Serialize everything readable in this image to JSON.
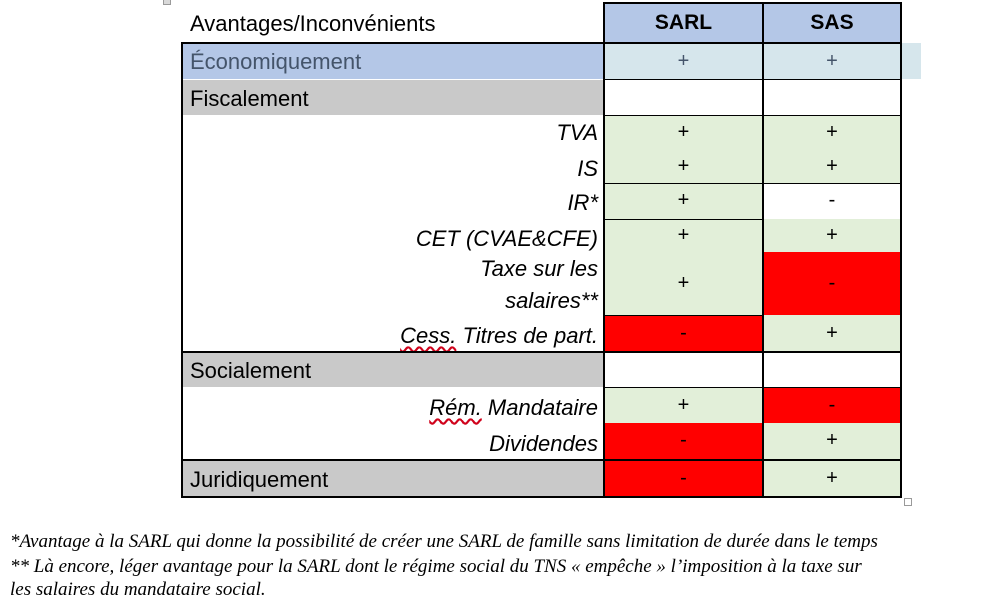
{
  "colors": {
    "header_blue": "#b4c7e7",
    "econ_blue": "#b4c7e7",
    "econ_mark": "#d6e6ec",
    "section_gray": "#c9c9c9",
    "plus_green": "#e2efd9",
    "minus_red": "#ff0000",
    "white": "#ffffff"
  },
  "table": {
    "corner_label": "Avantages/Inconvénients",
    "col_sarl": "SARL",
    "col_sas": "SAS",
    "rows": [
      {
        "label": "Économiquement",
        "sarl": "+",
        "sas": "+"
      },
      {
        "label": "Fiscalement"
      },
      {
        "label": "TVA",
        "sarl": "+",
        "sas": "+"
      },
      {
        "label": "IS",
        "sarl": "+",
        "sas": "+"
      },
      {
        "label": "IR*",
        "sarl": "+",
        "sas": "-"
      },
      {
        "label": "CET (CVAE&CFE)",
        "sarl": "+",
        "sas": "+"
      },
      {
        "label_line1": "Taxe sur les",
        "label_line2": "salaires**",
        "sarl": "+",
        "sas": "-"
      },
      {
        "label_word": "Cess.",
        "label_rest": " Titres de part.",
        "sarl": "-",
        "sas": "+"
      },
      {
        "label": "Socialement"
      },
      {
        "label_word": "Rém.",
        "label_rest": " Mandataire",
        "sarl": "+",
        "sas": "-"
      },
      {
        "label": "Dividendes",
        "sarl": "-",
        "sas": "+"
      },
      {
        "label": "Juridiquement",
        "sarl": "-",
        "sas": "+"
      }
    ]
  },
  "footnotes": {
    "line1": "*Avantage à la SARL qui donne la possibilité de créer une SARL de famille sans limitation de durée dans le temps",
    "line2": "** Là encore, léger avantage pour la SARL dont le régime social du TNS « empêche » l’imposition à la taxe sur",
    "line3": "les salaires du mandataire social."
  }
}
